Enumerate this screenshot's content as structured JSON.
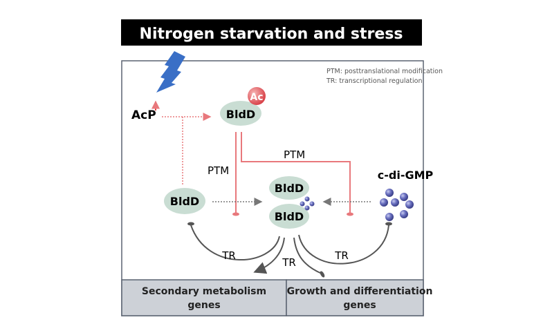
{
  "title": "Nitrogen starvation and stress",
  "legend": {
    "ptm": "PTM: posttranslational modification",
    "tr": "TR: transcriptional regulation"
  },
  "nodes": {
    "acp": "AcP",
    "ac_badge": "Ac",
    "bldd_acetylated": "BldD",
    "bldd_free": "BldD",
    "bldd_dimer_top": "BldD",
    "bldd_dimer_bottom": "BldD",
    "c_di_gmp": "c-di-GMP"
  },
  "edges": {
    "ptm_left": "PTM",
    "ptm_right": "PTM",
    "tr_left": "TR",
    "tr_middle": "TR",
    "tr_right": "TR"
  },
  "genes": {
    "secondary": [
      "Secondary metabolism",
      "genes"
    ],
    "growth": [
      "Growth and differentiation",
      "genes"
    ]
  },
  "colors": {
    "title_bg": "#000000",
    "protein": "#c9ddd3",
    "inhibition": "#e8787c",
    "ac_badge": "#e0585e",
    "c_di_gmp": "#5d63b0",
    "gene_box": "#cdd1d7",
    "lightning": "#3a6fc6"
  }
}
